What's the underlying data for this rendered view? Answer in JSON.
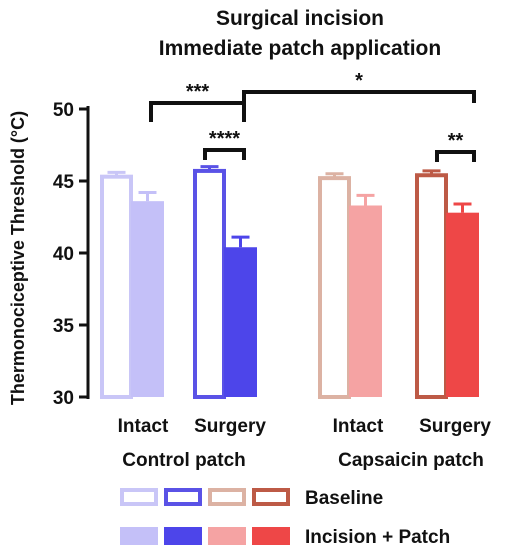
{
  "chart_data": {
    "type": "bar",
    "title": [
      "Surgical incision",
      "Immediate patch application"
    ],
    "ylabel": "Thermonociceptive Threshold (°C)",
    "ylim": [
      30,
      50
    ],
    "yticks": [
      30,
      35,
      40,
      45,
      50
    ],
    "groups": [
      "Control patch",
      "Capsaicin patch"
    ],
    "categories": [
      "Intact",
      "Surgery",
      "Intact",
      "Surgery"
    ],
    "series": [
      {
        "name": "Baseline",
        "values": [
          45.3,
          45.7,
          45.2,
          45.4
        ],
        "errors": [
          0.3,
          0.3,
          0.3,
          0.3
        ]
      },
      {
        "name": "Incision + Patch",
        "values": [
          43.6,
          40.4,
          43.3,
          42.8
        ],
        "errors": [
          0.6,
          0.7,
          0.7,
          0.6
        ]
      }
    ],
    "colors": {
      "baseline": [
        "#c9c6f7",
        "#5a52e6",
        "#dcb2a3",
        "#bd5a46"
      ],
      "incision": [
        "#c4c0f8",
        "#4d45ea",
        "#f5a3a3",
        "#ee4747"
      ]
    },
    "significance": [
      {
        "label": "***"
      },
      {
        "label": "****"
      },
      {
        "label": "*"
      },
      {
        "label": "**"
      }
    ],
    "grid": false,
    "legend_position": "bottom"
  }
}
